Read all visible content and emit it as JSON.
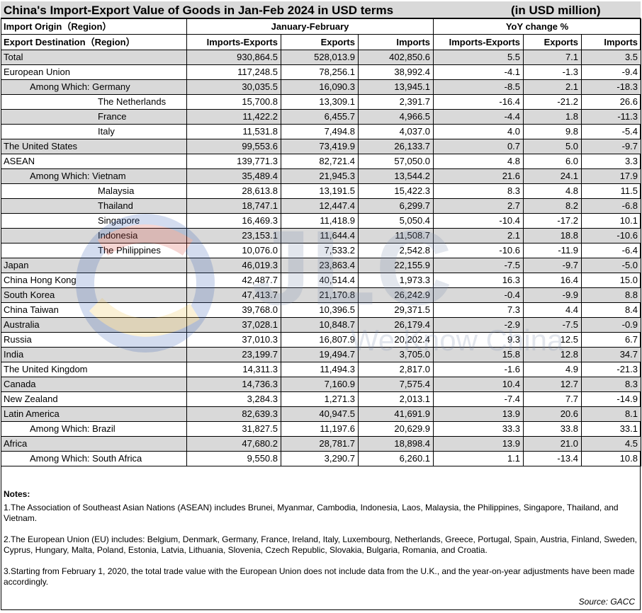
{
  "title": "China's Import-Export Value of Goods in Jan-Feb 2024 in USD terms",
  "unit": "(in USD million)",
  "header": {
    "region_line1": "Import Origin（Region）",
    "region_line2": "Export Destination（Region）",
    "period_group": "January-February",
    "yoy_group": "YoY change %",
    "col_ie": "Imports-Exports",
    "col_exp": "Exports",
    "col_imp": "Imports"
  },
  "rows": [
    {
      "name": "Total",
      "indent": 0,
      "shade": true,
      "v": [
        "930,864.5",
        "528,013.9",
        "402,850.6",
        "5.5",
        "7.1",
        "3.5"
      ]
    },
    {
      "name": "European Union",
      "indent": 0,
      "shade": false,
      "v": [
        "117,248.5",
        "78,256.1",
        "38,992.4",
        "-4.1",
        "-1.3",
        "-9.4"
      ]
    },
    {
      "name": "Among Which: Germany",
      "indent": 1,
      "shade": true,
      "v": [
        "30,035.5",
        "16,090.3",
        "13,945.1",
        "-8.5",
        "2.1",
        "-18.3"
      ]
    },
    {
      "name": "The Netherlands",
      "indent": 2,
      "shade": false,
      "v": [
        "15,700.8",
        "13,309.1",
        "2,391.7",
        "-16.4",
        "-21.2",
        "26.6"
      ]
    },
    {
      "name": "France",
      "indent": 2,
      "shade": true,
      "v": [
        "11,422.2",
        "6,455.7",
        "4,966.5",
        "-4.4",
        "1.8",
        "-11.3"
      ]
    },
    {
      "name": "Italy",
      "indent": 2,
      "shade": false,
      "v": [
        "11,531.8",
        "7,494.8",
        "4,037.0",
        "4.0",
        "9.8",
        "-5.4"
      ]
    },
    {
      "name": "The United States",
      "indent": 0,
      "shade": true,
      "v": [
        "99,553.6",
        "73,419.9",
        "26,133.7",
        "0.7",
        "5.0",
        "-9.7"
      ]
    },
    {
      "name": "ASEAN",
      "indent": 0,
      "shade": false,
      "v": [
        "139,771.3",
        "82,721.4",
        "57,050.0",
        "4.8",
        "6.0",
        "3.3"
      ]
    },
    {
      "name": "Among Which: Vietnam",
      "indent": 1,
      "shade": true,
      "v": [
        "35,489.4",
        "21,945.3",
        "13,544.2",
        "21.6",
        "24.1",
        "17.9"
      ]
    },
    {
      "name": "Malaysia",
      "indent": 2,
      "shade": false,
      "v": [
        "28,613.8",
        "13,191.5",
        "15,422.3",
        "8.3",
        "4.8",
        "11.5"
      ]
    },
    {
      "name": "Thailand",
      "indent": 2,
      "shade": true,
      "v": [
        "18,747.1",
        "12,447.4",
        "6,299.7",
        "2.7",
        "8.2",
        "-6.8"
      ]
    },
    {
      "name": "Singapore",
      "indent": 2,
      "shade": false,
      "v": [
        "16,469.3",
        "11,418.9",
        "5,050.4",
        "-10.4",
        "-17.2",
        "10.1"
      ]
    },
    {
      "name": "Indonesia",
      "indent": 2,
      "shade": true,
      "v": [
        "23,153.1",
        "11,644.4",
        "11,508.7",
        "2.1",
        "18.8",
        "-10.6"
      ]
    },
    {
      "name": "The Philippines",
      "indent": 2,
      "shade": false,
      "v": [
        "10,076.0",
        "7,533.2",
        "2,542.8",
        "-10.6",
        "-11.9",
        "-6.4"
      ]
    },
    {
      "name": "Japan",
      "indent": 0,
      "shade": true,
      "v": [
        "46,019.3",
        "23,863.4",
        "22,155.9",
        "-7.5",
        "-9.7",
        "-5.0"
      ]
    },
    {
      "name": "China Hong Kong",
      "indent": 0,
      "shade": false,
      "v": [
        "42,487.7",
        "40,514.4",
        "1,973.3",
        "16.3",
        "16.4",
        "15.0"
      ]
    },
    {
      "name": "South Korea",
      "indent": 0,
      "shade": true,
      "v": [
        "47,413.7",
        "21,170.8",
        "26,242.9",
        "-0.4",
        "-9.9",
        "8.8"
      ]
    },
    {
      "name": "China Taiwan",
      "indent": 0,
      "shade": false,
      "v": [
        "39,768.0",
        "10,396.5",
        "29,371.5",
        "7.3",
        "4.4",
        "8.4"
      ]
    },
    {
      "name": "Australia",
      "indent": 0,
      "shade": true,
      "v": [
        "37,028.1",
        "10,848.7",
        "26,179.4",
        "-2.9",
        "-7.5",
        "-0.9"
      ]
    },
    {
      "name": "Russia",
      "indent": 0,
      "shade": false,
      "v": [
        "37,010.3",
        "16,807.9",
        "20,202.4",
        "9.3",
        "12.5",
        "6.7"
      ]
    },
    {
      "name": "India",
      "indent": 0,
      "shade": true,
      "v": [
        "23,199.7",
        "19,494.7",
        "3,705.0",
        "15.8",
        "12.8",
        "34.7"
      ]
    },
    {
      "name": "The United Kingdom",
      "indent": 0,
      "shade": false,
      "v": [
        "14,311.3",
        "11,494.3",
        "2,817.0",
        "-1.6",
        "4.9",
        "-21.3"
      ]
    },
    {
      "name": "Canada",
      "indent": 0,
      "shade": true,
      "v": [
        "14,736.3",
        "7,160.9",
        "7,575.4",
        "10.4",
        "12.7",
        "8.3"
      ]
    },
    {
      "name": "New Zealand",
      "indent": 0,
      "shade": false,
      "v": [
        "3,284.3",
        "1,271.3",
        "2,013.1",
        "-7.4",
        "7.7",
        "-14.9"
      ]
    },
    {
      "name": "Latin America",
      "indent": 0,
      "shade": true,
      "v": [
        "82,639.3",
        "40,947.5",
        "41,691.9",
        "13.9",
        "20.6",
        "8.1"
      ]
    },
    {
      "name": "Among Which: Brazil",
      "indent": 1,
      "shade": false,
      "v": [
        "31,827.5",
        "11,197.6",
        "20,629.9",
        "33.3",
        "33.8",
        "33.1"
      ]
    },
    {
      "name": "Africa",
      "indent": 0,
      "shade": true,
      "v": [
        "47,680.2",
        "28,781.7",
        "18,898.4",
        "13.9",
        "21.0",
        "4.5"
      ]
    },
    {
      "name": "Among Which: South Africa",
      "indent": 1,
      "shade": false,
      "v": [
        "9,550.8",
        "3,290.7",
        "6,260.1",
        "1.1",
        "-13.4",
        "10.8"
      ]
    }
  ],
  "notes": {
    "heading": "Notes:",
    "items": [
      "1.The Association of Southeast Asian Nations (ASEAN) includes Brunei, Myanmar, Cambodia, Indonesia, Laos, Malaysia, the Philippines, Singapore, Thailand, and Vietnam.",
      "2.The European Union (EU) includes: Belgium, Denmark, Germany, France, Ireland, Italy, Luxembourg, Netherlands, Greece, Portugal, Spain, Austria, Finland, Sweden, Cyprus, Hungary, Malta, Poland, Estonia, Latvia, Lithuania, Slovenia, Czech Republic, Slovakia, Bulgaria, Romania, and Croatia.",
      "3.Starting from February 1, 2020, the total trade value with the European Union does not include data from the U.K., and the year-on-year adjustments have been made accordingly."
    ],
    "source": "Source: GACC"
  },
  "watermark": {
    "text": "JLC",
    "subtext": "We Know China",
    "colors": [
      "#d9473b",
      "#f0c24a",
      "#3a63b8"
    ]
  }
}
